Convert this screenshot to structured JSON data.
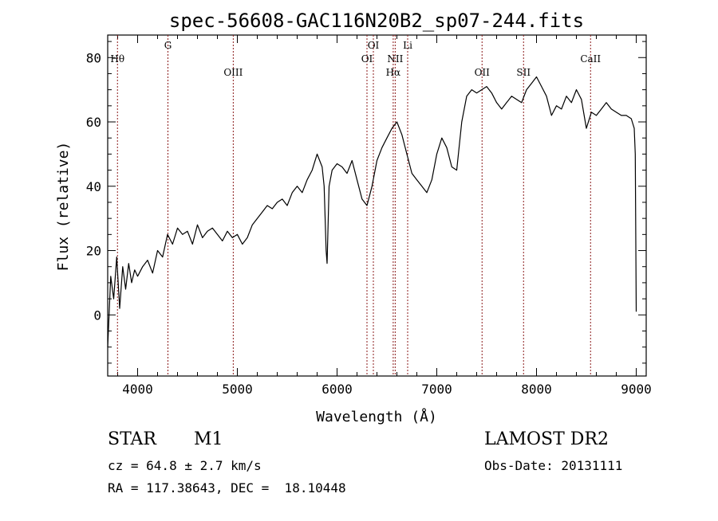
{
  "chart_data": {
    "type": "line",
    "title": "spec-56608-GAC116N20B2_sp07-244.fits",
    "xlabel": "Wavelength (Å)",
    "ylabel": "Flux (relative)",
    "xlim": [
      3700,
      9100
    ],
    "ylim": [
      -19,
      87
    ],
    "x_ticks": [
      4000,
      5000,
      6000,
      7000,
      8000,
      9000
    ],
    "y_ticks": [
      0,
      20,
      40,
      60,
      80
    ],
    "grid": false,
    "line_color": "#000000",
    "marker_color": "#8b1a1a",
    "series": [
      {
        "x": [
          3700,
          3730,
          3760,
          3790,
          3820,
          3850,
          3880,
          3910,
          3940,
          3970,
          4000,
          4050,
          4100,
          4150,
          4200,
          4250,
          4300,
          4350,
          4400,
          4450,
          4500,
          4550,
          4600,
          4650,
          4700,
          4750,
          4800,
          4850,
          4900,
          4950,
          5000,
          5050,
          5100,
          5150,
          5200,
          5250,
          5300,
          5350,
          5400,
          5450,
          5500,
          5550,
          5600,
          5650,
          5700,
          5750,
          5800,
          5850,
          5870,
          5890,
          5900,
          5920,
          5950,
          6000,
          6050,
          6100,
          6150,
          6200,
          6250,
          6300,
          6350,
          6400,
          6450,
          6500,
          6550,
          6600,
          6650,
          6700,
          6750,
          6800,
          6850,
          6900,
          6950,
          7000,
          7050,
          7100,
          7150,
          7200,
          7250,
          7300,
          7350,
          7400,
          7450,
          7500,
          7550,
          7600,
          7650,
          7700,
          7750,
          7800,
          7850,
          7900,
          7950,
          8000,
          8050,
          8100,
          8150,
          8200,
          8250,
          8300,
          8350,
          8400,
          8450,
          8500,
          8550,
          8600,
          8650,
          8700,
          8750,
          8800,
          8850,
          8900,
          8950,
          8980,
          8990,
          9000
        ],
        "y": [
          -10,
          12,
          5,
          18,
          2,
          15,
          8,
          16,
          10,
          14,
          12,
          15,
          17,
          13,
          20,
          18,
          25,
          22,
          27,
          25,
          26,
          22,
          28,
          24,
          26,
          27,
          25,
          23,
          26,
          24,
          25,
          22,
          24,
          28,
          30,
          32,
          34,
          33,
          35,
          36,
          34,
          38,
          40,
          38,
          42,
          45,
          50,
          46,
          40,
          20,
          16,
          40,
          45,
          47,
          46,
          44,
          48,
          42,
          36,
          34,
          40,
          48,
          52,
          55,
          58,
          60,
          56,
          50,
          44,
          42,
          40,
          38,
          42,
          50,
          55,
          52,
          46,
          45,
          60,
          68,
          70,
          69,
          70,
          71,
          69,
          66,
          64,
          66,
          68,
          67,
          66,
          70,
          72,
          74,
          71,
          68,
          62,
          65,
          64,
          68,
          66,
          70,
          67,
          58,
          63,
          62,
          64,
          66,
          64,
          63,
          62,
          62,
          61,
          58,
          50,
          1
        ]
      }
    ],
    "lines": [
      {
        "label": "Hθ",
        "x": 3798,
        "row": 2
      },
      {
        "label": "G",
        "x": 4304,
        "row": 1
      },
      {
        "label": "OIII",
        "x": 4959,
        "row": 3
      },
      {
        "label": "OI",
        "x": 6300,
        "row": 2
      },
      {
        "label": "OI",
        "x": 6364,
        "row": 1
      },
      {
        "label": "NII",
        "x": 6583,
        "row": 2
      },
      {
        "label": "Hα",
        "x": 6563,
        "row": 3
      },
      {
        "label": "Li",
        "x": 6708,
        "row": 1
      },
      {
        "label": "OII",
        "x": 7454,
        "row": 3
      },
      {
        "label": "SII",
        "x": 7870,
        "row": 3
      },
      {
        "label": "CaII",
        "x": 8542,
        "row": 2
      }
    ]
  },
  "info": {
    "class": "STAR",
    "subclass": "M1",
    "survey": "LAMOST DR2",
    "cz": "cz = 64.8 ± 2.7 km/s",
    "obs_date": "Obs-Date: 20131111",
    "coords": "RA = 117.38643, DEC =  18.10448"
  }
}
